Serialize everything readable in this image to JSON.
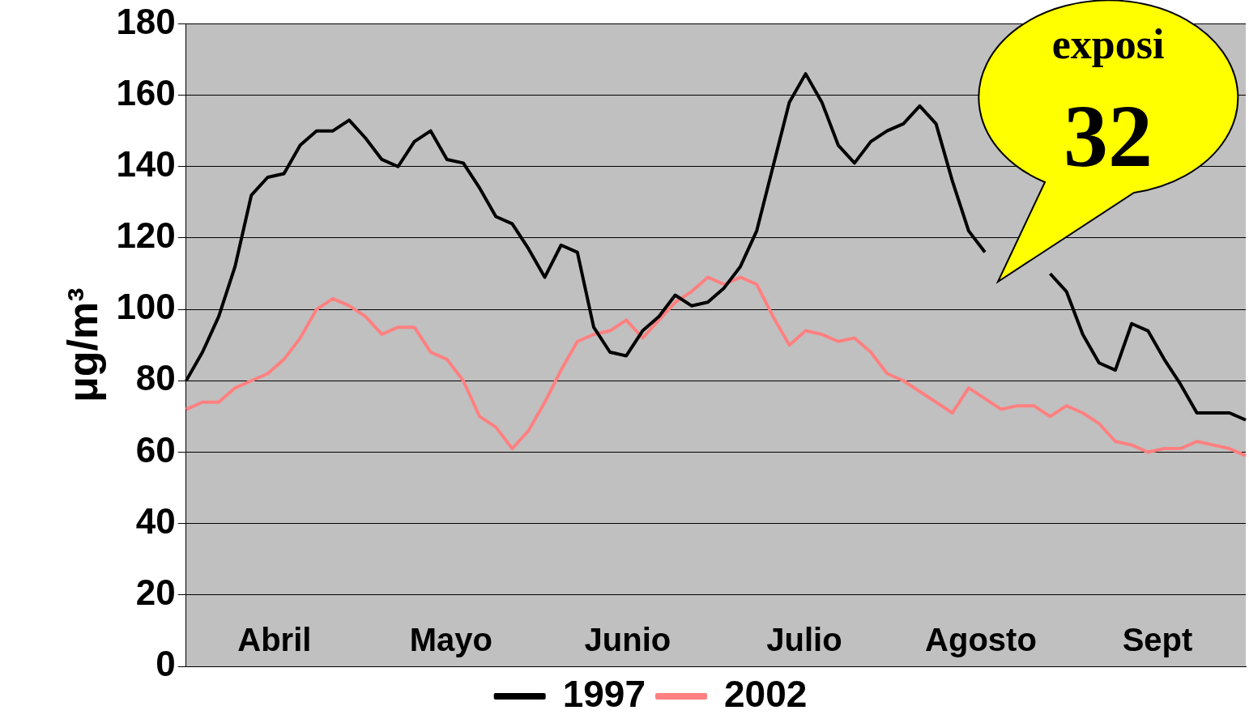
{
  "chart_data": {
    "type": "line",
    "ylabel": "μg/m³",
    "ylim": [
      0,
      180
    ],
    "yticks": [
      0,
      20,
      40,
      60,
      80,
      100,
      120,
      140,
      160,
      180
    ],
    "grid": "y",
    "legend": "bottom",
    "marker": "none",
    "line_style": "solid",
    "categories": [
      null,
      null,
      null,
      null,
      null,
      null,
      null,
      null,
      null,
      null,
      null,
      null,
      null,
      null,
      null,
      null,
      null,
      null,
      null,
      null,
      null,
      null,
      null,
      null,
      null,
      null,
      null,
      null,
      null,
      null,
      null,
      null,
      null,
      null,
      null,
      null,
      null,
      null,
      null,
      null,
      null,
      null,
      null,
      null,
      null,
      null,
      null,
      null,
      null,
      null,
      null,
      null,
      null,
      null,
      null,
      null,
      null,
      null,
      null,
      null,
      null,
      null,
      null,
      null,
      null,
      null
    ],
    "series": [
      {
        "name": "1997",
        "color": "#000000",
        "values": [
          80,
          88,
          98,
          112,
          132,
          137,
          138,
          146,
          150,
          150,
          153,
          148,
          142,
          140,
          147,
          150,
          142,
          141,
          134,
          126,
          124,
          117,
          109,
          118,
          116,
          95,
          88,
          87,
          94,
          98,
          104,
          101,
          102,
          106,
          112,
          122,
          140,
          158,
          166,
          158,
          146,
          141,
          147,
          150,
          152,
          157,
          152,
          136,
          122,
          116,
          null,
          null,
          null,
          110,
          105,
          93,
          85,
          83,
          96,
          94,
          86,
          79,
          71,
          71,
          71,
          69
        ]
      },
      {
        "name": "2002",
        "color": "#ff8080",
        "values": [
          72,
          74,
          74,
          78,
          80,
          82,
          86,
          92,
          100,
          103,
          101,
          98,
          93,
          95,
          95,
          88,
          86,
          80,
          70,
          67,
          61,
          66,
          74,
          83,
          91,
          93,
          94,
          97,
          92,
          97,
          102,
          105,
          109,
          107,
          109,
          107,
          98,
          90,
          94,
          93,
          91,
          92,
          88,
          82,
          80,
          77,
          74,
          71,
          78,
          75,
          72,
          73,
          73,
          70,
          73,
          71,
          68,
          63,
          62,
          60,
          61,
          61,
          63,
          62,
          61,
          59
        ]
      }
    ],
    "annotations": [
      "Abril",
      "Mayo",
      "Junio",
      "Julio",
      "Agosto",
      "Sept",
      "exposi",
      "32"
    ]
  }
}
